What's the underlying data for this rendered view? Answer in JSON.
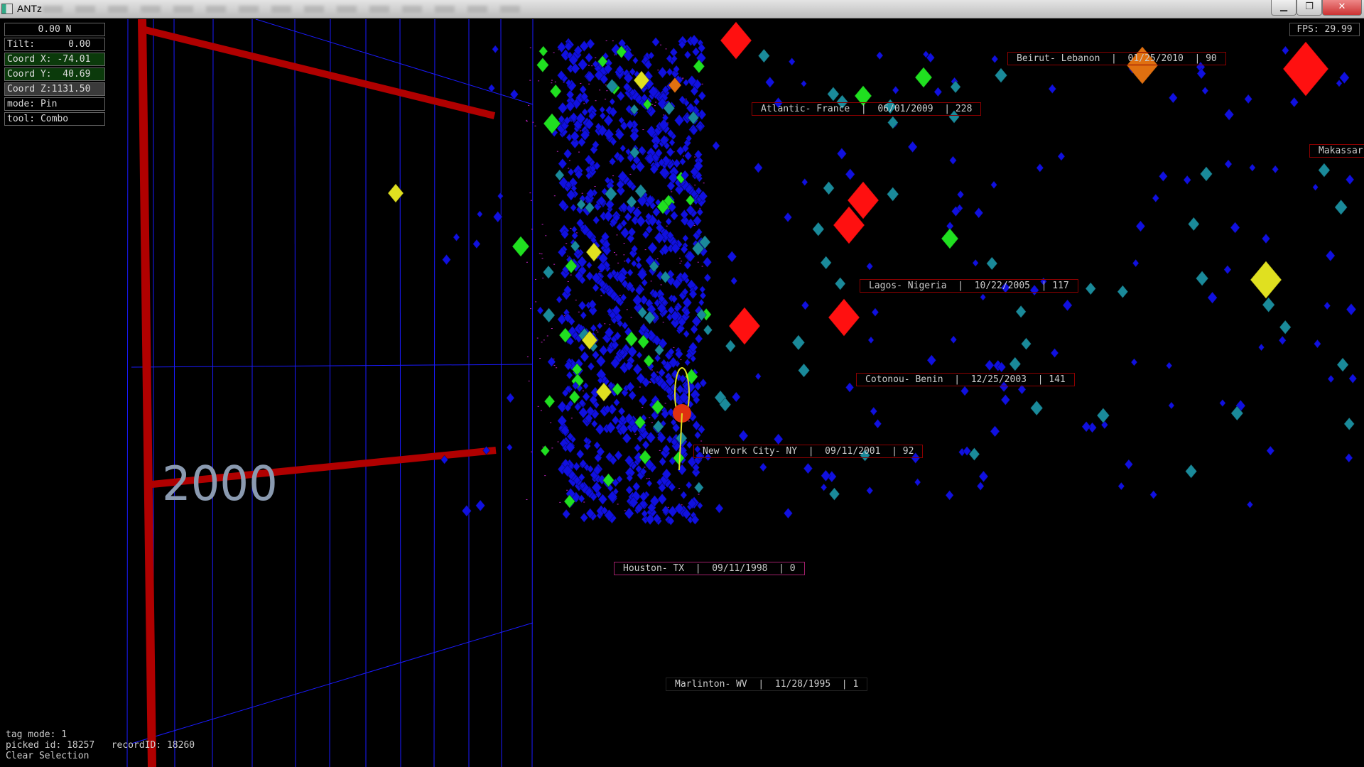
{
  "window": {
    "title": "ANTz",
    "minimize_icon": "minimize-icon",
    "maximize_icon": "restore-icon",
    "close_icon": "close-icon"
  },
  "hud": {
    "heading": "0.00 N",
    "tilt": "Tilt:      0.00",
    "coord_x": "Coord X: -74.01",
    "coord_y": "Coord Y:  40.69",
    "coord_z": "Coord Z:1131.50",
    "mode": "mode: Pin",
    "tool": "tool: Combo",
    "fps": "FPS: 29.99"
  },
  "scene": {
    "grid_year_label": "2000",
    "colors": {
      "grid": "#1a1aff",
      "axis_bar": "#b00000",
      "points": "#1010e0",
      "teal": "#1a8a9a",
      "green": "#20e020",
      "yellow": "#e0e020",
      "red": "#ff1010",
      "orange": "#e07010"
    }
  },
  "labels": [
    {
      "text": "Beirut- Lebanon  |  01/25/2010  | 90",
      "border": "#8b0000"
    },
    {
      "text": "Atlantic- France  |  06/01/2009  | 228",
      "border": "#8b0000"
    },
    {
      "text": "Makassar",
      "border": "#8b0000"
    },
    {
      "text": "Lagos- Nigeria  |  10/22/2005  | 117",
      "border": "#8b0000"
    },
    {
      "text": "Cotonou- Benin  |  12/25/2003  | 141",
      "border": "#8b0000"
    },
    {
      "text": "New York City- NY  |  09/11/2001  | 92",
      "border": "#8b0000"
    },
    {
      "text": "Houston- TX  |  09/11/1998  | 0",
      "border": "#a0206a"
    },
    {
      "text": "Marlinton- WV  |  11/28/1995  | 1",
      "border": "#222222"
    }
  ],
  "status": {
    "tag_mode": "tag mode: 1",
    "picked": "picked id: 18257   recordID: 18260",
    "clear": "Clear Selection"
  }
}
